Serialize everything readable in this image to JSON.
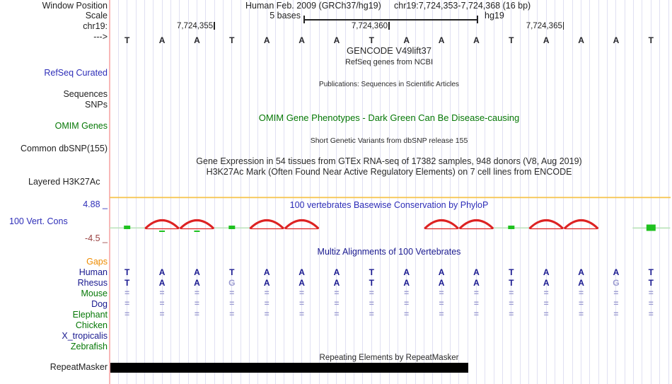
{
  "colors": {
    "navy": "#19198f",
    "green": "#067806",
    "orange": "#ee8b00",
    "blue": "#2e2eb8",
    "maroon": "#9a4242",
    "red": "#dd2222",
    "bright_green": "#1fc11f",
    "pale_green": "#bce4bc",
    "gold": "#f6c44f",
    "grid": "#e0e0f2",
    "pink": "#f8b8b8",
    "letter_dark": "#26262a",
    "align_light": "#9a9ad0",
    "bar_black": "#000000"
  },
  "header": {
    "window_position_label": "Window Position",
    "assembly": "Human Feb. 2009 (GRCh37/hg19)",
    "position": "chr19:7,724,353-7,724,368 (16 bp)",
    "scale_label": "Scale",
    "scale_text": "5 bases",
    "genome": "hg19",
    "chrom_label": "chr19:",
    "strand_label": "--->"
  },
  "ruler": {
    "coordinates": [
      {
        "label": "7,724,355",
        "base": 3
      },
      {
        "label": "7,724,360",
        "base": 8
      },
      {
        "label": "7,724,365",
        "base": 13
      }
    ],
    "sequence": [
      "T",
      "A",
      "A",
      "T",
      "A",
      "A",
      "A",
      "T",
      "A",
      "A",
      "A",
      "T",
      "A",
      "A",
      "A",
      "T"
    ]
  },
  "tracks": {
    "gencode": {
      "title": "GENCODE V49lift37",
      "subtitle": "RefSeq genes from NCBI",
      "label": "RefSeq Curated"
    },
    "sequences_label": "Sequences",
    "snps_label": "SNPs",
    "publications_title": "Publications: Sequences in Scientific Articles",
    "omim": {
      "label": "OMIM Genes",
      "title": "OMIM Gene Phenotypes - Dark Green Can Be Disease-causing"
    },
    "dbsnp": {
      "label": "Common dbSNP(155)",
      "title": "Short Genetic Variants from dbSNP release 155"
    },
    "gtex_title": "Gene Expression in 54 tissues from GTEx RNA-seq of 17382 samples, 948 donors (V8, Aug 2019)",
    "h3k27ac": {
      "title": "H3K27Ac Mark (Often Found Near Active Regulatory Elements) on 7 cell lines from ENCODE",
      "label": "Layered H3K27Ac"
    },
    "conservation": {
      "label": "100 Vert. Cons",
      "title": "100 vertebrates Basewise Conservation by PhyloP",
      "upper_limit": "4.88 _",
      "lower_limit": "-4.5 _",
      "per_base": [
        "zero",
        "hump_tick",
        "hump_tick",
        "zero",
        "hump",
        "hump",
        "none",
        "none",
        "none",
        "hump",
        "hump",
        "zero",
        "hump",
        "hump",
        "none",
        "zero_big"
      ]
    },
    "multiz": {
      "title": "Multiz Alignments of 100 Vertebrates",
      "species": [
        {
          "name": "Gaps",
          "color": "orange",
          "row": "blank"
        },
        {
          "name": "Human",
          "color": "navy",
          "row": "human"
        },
        {
          "name": "Rhesus",
          "color": "navy",
          "row": "rhesus"
        },
        {
          "name": "Mouse",
          "color": "green",
          "row": "gaps"
        },
        {
          "name": "Dog",
          "color": "navy",
          "row": "gaps"
        },
        {
          "name": "Elephant",
          "color": "green",
          "row": "gaps"
        },
        {
          "name": "Chicken",
          "color": "green",
          "row": "blank"
        },
        {
          "name": "X_tropicalis",
          "color": "navy",
          "row": "blank"
        },
        {
          "name": "Zebrafish",
          "color": "green",
          "row": "blank"
        }
      ],
      "rhesus_sequence": [
        "T",
        "A",
        "A",
        "G",
        "A",
        "A",
        "A",
        "T",
        "A",
        "A",
        "A",
        "T",
        "A",
        "A",
        "G",
        "T"
      ],
      "gap_symbol": "="
    },
    "repeatmasker": {
      "title": "Repeating Elements by RepeatMasker",
      "label": "RepeatMasker",
      "bar_start_base": 0,
      "bar_end_base": 10.25
    }
  }
}
